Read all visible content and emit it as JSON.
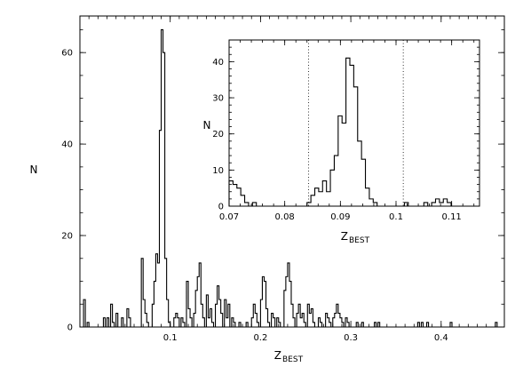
{
  "chart_data": [
    {
      "type": "histogram",
      "title": "",
      "xlabel": "Z",
      "xlabel_sub": "BEST",
      "ylabel": "N",
      "xlim": [
        0.0,
        0.47
      ],
      "ylim": [
        0,
        68
      ],
      "xticks": [
        0.1,
        0.2,
        0.3,
        0.4
      ],
      "xtick_labels": [
        "0.1",
        "0.2",
        "0.3",
        "0.4"
      ],
      "yticks": [
        0,
        20,
        40,
        60
      ],
      "ytick_labels": [
        "0",
        "20",
        "40",
        "60"
      ],
      "grid": false,
      "bin_width": 0.002,
      "bins": [
        [
          0.004,
          6
        ],
        [
          0.006,
          0
        ],
        [
          0.008,
          1
        ],
        [
          0.01,
          0
        ],
        [
          0.026,
          2
        ],
        [
          0.028,
          0
        ],
        [
          0.03,
          2
        ],
        [
          0.032,
          0
        ],
        [
          0.034,
          5
        ],
        [
          0.036,
          1
        ],
        [
          0.038,
          0
        ],
        [
          0.04,
          3
        ],
        [
          0.042,
          0
        ],
        [
          0.046,
          2
        ],
        [
          0.048,
          0
        ],
        [
          0.052,
          4
        ],
        [
          0.054,
          2
        ],
        [
          0.056,
          0
        ],
        [
          0.068,
          15
        ],
        [
          0.07,
          6
        ],
        [
          0.072,
          3
        ],
        [
          0.074,
          1
        ],
        [
          0.076,
          0
        ],
        [
          0.08,
          5
        ],
        [
          0.082,
          10
        ],
        [
          0.084,
          16
        ],
        [
          0.086,
          14
        ],
        [
          0.088,
          43
        ],
        [
          0.09,
          65
        ],
        [
          0.092,
          60
        ],
        [
          0.094,
          15
        ],
        [
          0.096,
          6
        ],
        [
          0.098,
          1
        ],
        [
          0.1,
          0
        ],
        [
          0.104,
          2
        ],
        [
          0.106,
          3
        ],
        [
          0.108,
          2
        ],
        [
          0.11,
          0
        ],
        [
          0.112,
          2
        ],
        [
          0.114,
          1
        ],
        [
          0.116,
          0
        ],
        [
          0.118,
          10
        ],
        [
          0.12,
          4
        ],
        [
          0.122,
          2
        ],
        [
          0.124,
          0
        ],
        [
          0.126,
          3
        ],
        [
          0.128,
          8
        ],
        [
          0.13,
          11
        ],
        [
          0.132,
          14
        ],
        [
          0.134,
          5
        ],
        [
          0.136,
          2
        ],
        [
          0.138,
          0
        ],
        [
          0.14,
          7
        ],
        [
          0.142,
          2
        ],
        [
          0.144,
          4
        ],
        [
          0.146,
          1
        ],
        [
          0.148,
          0
        ],
        [
          0.15,
          5
        ],
        [
          0.152,
          9
        ],
        [
          0.154,
          6
        ],
        [
          0.156,
          3
        ],
        [
          0.158,
          0
        ],
        [
          0.16,
          6
        ],
        [
          0.162,
          2
        ],
        [
          0.164,
          5
        ],
        [
          0.166,
          0
        ],
        [
          0.168,
          2
        ],
        [
          0.17,
          1
        ],
        [
          0.172,
          0
        ],
        [
          0.176,
          1
        ],
        [
          0.178,
          0
        ],
        [
          0.184,
          1
        ],
        [
          0.186,
          0
        ],
        [
          0.19,
          2
        ],
        [
          0.192,
          5
        ],
        [
          0.194,
          3
        ],
        [
          0.196,
          1
        ],
        [
          0.198,
          0
        ],
        [
          0.2,
          6
        ],
        [
          0.202,
          11
        ],
        [
          0.204,
          10
        ],
        [
          0.206,
          4
        ],
        [
          0.208,
          1
        ],
        [
          0.21,
          0
        ],
        [
          0.212,
          3
        ],
        [
          0.214,
          2
        ],
        [
          0.216,
          0
        ],
        [
          0.218,
          2
        ],
        [
          0.22,
          1
        ],
        [
          0.222,
          0
        ],
        [
          0.226,
          8
        ],
        [
          0.228,
          11
        ],
        [
          0.23,
          14
        ],
        [
          0.232,
          10
        ],
        [
          0.234,
          5
        ],
        [
          0.236,
          2
        ],
        [
          0.238,
          0
        ],
        [
          0.24,
          3
        ],
        [
          0.242,
          5
        ],
        [
          0.244,
          2
        ],
        [
          0.246,
          3
        ],
        [
          0.248,
          1
        ],
        [
          0.25,
          0
        ],
        [
          0.252,
          5
        ],
        [
          0.254,
          3
        ],
        [
          0.256,
          4
        ],
        [
          0.258,
          1
        ],
        [
          0.26,
          0
        ],
        [
          0.264,
          2
        ],
        [
          0.266,
          1
        ],
        [
          0.268,
          0
        ],
        [
          0.272,
          3
        ],
        [
          0.274,
          2
        ],
        [
          0.276,
          1
        ],
        [
          0.278,
          0
        ],
        [
          0.28,
          2
        ],
        [
          0.282,
          3
        ],
        [
          0.284,
          5
        ],
        [
          0.286,
          3
        ],
        [
          0.288,
          2
        ],
        [
          0.29,
          1
        ],
        [
          0.292,
          0
        ],
        [
          0.294,
          2
        ],
        [
          0.296,
          1
        ],
        [
          0.298,
          0
        ],
        [
          0.306,
          1
        ],
        [
          0.308,
          0
        ],
        [
          0.312,
          1
        ],
        [
          0.314,
          0
        ],
        [
          0.326,
          1
        ],
        [
          0.328,
          0
        ],
        [
          0.33,
          1
        ],
        [
          0.332,
          0
        ],
        [
          0.374,
          1
        ],
        [
          0.376,
          0
        ],
        [
          0.378,
          1
        ],
        [
          0.38,
          0
        ],
        [
          0.384,
          1
        ],
        [
          0.386,
          0
        ],
        [
          0.41,
          1
        ],
        [
          0.412,
          0
        ],
        [
          0.46,
          1
        ],
        [
          0.462,
          0
        ]
      ]
    },
    {
      "type": "histogram",
      "title": "",
      "xlabel": "Z",
      "xlabel_sub": "BEST",
      "ylabel": "N",
      "xlim": [
        0.07,
        0.115
      ],
      "ylim": [
        0,
        46
      ],
      "xticks": [
        0.07,
        0.08,
        0.09,
        0.1,
        0.11
      ],
      "xtick_labels": [
        "0.07",
        "0.08",
        "0.09",
        "0.1",
        "0.11"
      ],
      "yticks": [
        0,
        10,
        20,
        30,
        40
      ],
      "ytick_labels": [
        "0",
        "10",
        "20",
        "30",
        "40"
      ],
      "grid": false,
      "reference_lines_x": [
        0.0843,
        0.1013
      ],
      "bin_width": 0.0007,
      "bins": [
        [
          0.07,
          7
        ],
        [
          0.0707,
          6
        ],
        [
          0.0714,
          5
        ],
        [
          0.0721,
          3
        ],
        [
          0.0728,
          1
        ],
        [
          0.0735,
          0
        ],
        [
          0.0742,
          1
        ],
        [
          0.0749,
          0
        ],
        [
          0.084,
          1
        ],
        [
          0.0847,
          3
        ],
        [
          0.0854,
          5
        ],
        [
          0.0861,
          4
        ],
        [
          0.0868,
          7
        ],
        [
          0.0875,
          4
        ],
        [
          0.0882,
          10
        ],
        [
          0.0889,
          14
        ],
        [
          0.0896,
          25
        ],
        [
          0.0903,
          23
        ],
        [
          0.091,
          41
        ],
        [
          0.0917,
          39
        ],
        [
          0.0924,
          33
        ],
        [
          0.0931,
          18
        ],
        [
          0.0938,
          13
        ],
        [
          0.0945,
          5
        ],
        [
          0.0952,
          2
        ],
        [
          0.0959,
          1
        ],
        [
          0.0966,
          0
        ],
        [
          0.1015,
          1
        ],
        [
          0.1022,
          0
        ],
        [
          0.105,
          1
        ],
        [
          0.1057,
          0
        ],
        [
          0.1064,
          1
        ],
        [
          0.1071,
          2
        ],
        [
          0.1078,
          1
        ],
        [
          0.1085,
          2
        ],
        [
          0.1092,
          1
        ],
        [
          0.1099,
          0
        ]
      ]
    }
  ]
}
